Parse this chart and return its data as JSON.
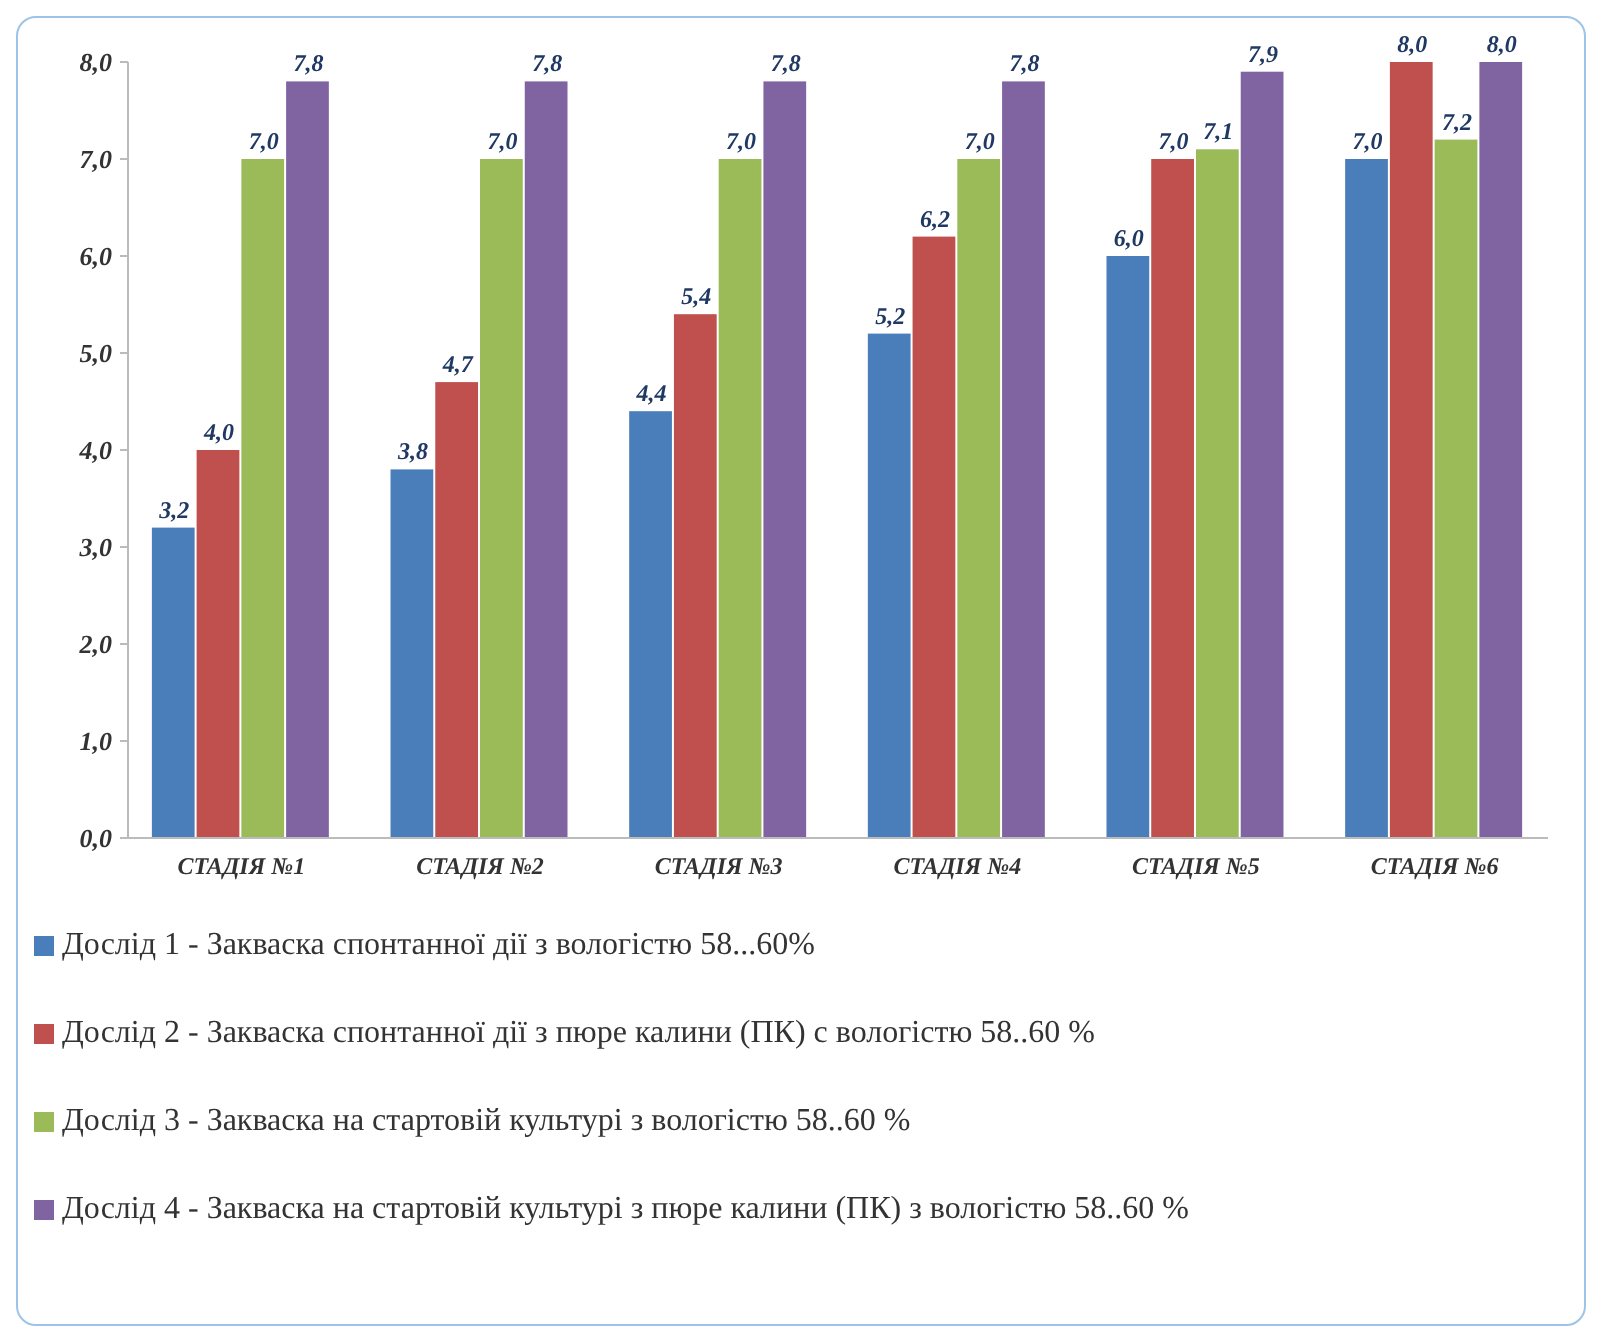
{
  "chart_data": {
    "type": "bar",
    "categories": [
      "СТАДІЯ №1",
      "СТАДІЯ №2",
      "СТАДІЯ №3",
      "СТАДІЯ №4",
      "СТАДІЯ №5",
      "СТАДІЯ №6"
    ],
    "series": [
      {
        "name": "Дослід 1 - Закваска спонтанної дії з вологістю 58...60%",
        "color": "#4a7ebb",
        "values": [
          3.2,
          3.8,
          4.4,
          5.2,
          6.0,
          7.0
        ],
        "value_labels": [
          "3,2",
          "3,8",
          "4,4",
          "5,2",
          "6,0",
          "7,0"
        ]
      },
      {
        "name": "Дослід 2 - Закваска спонтанної дії з пюре калини (ПК) с вологістю 58..60 %",
        "color": "#c0504d",
        "values": [
          4.0,
          4.7,
          5.4,
          6.2,
          7.0,
          8.0
        ],
        "value_labels": [
          "4,0",
          "4,7",
          "5,4",
          "6,2",
          "7,0",
          "8,0"
        ]
      },
      {
        "name": "Дослід 3 - Закваска на стартовій культурі з вологістю 58..60 %",
        "color": "#9bbb59",
        "values": [
          7.0,
          7.0,
          7.0,
          7.0,
          7.1,
          7.2
        ],
        "value_labels": [
          "7,0",
          "7,0",
          "7,0",
          "7,0",
          "7,1",
          "7,2"
        ]
      },
      {
        "name": "Дослід 4 - Закваска на стартовій культурі з пюре калини (ПК) з вологістю 58..60 %",
        "color": "#8064a2",
        "values": [
          7.8,
          7.8,
          7.8,
          7.8,
          7.9,
          8.0
        ],
        "value_labels": [
          "7,8",
          "7,8",
          "7,8",
          "7,8",
          "7,9",
          "8,0"
        ]
      }
    ],
    "ylim": [
      0,
      8
    ],
    "yticks": [
      {
        "value": 0,
        "label": "0,0"
      },
      {
        "value": 1,
        "label": "1,0"
      },
      {
        "value": 2,
        "label": "2,0"
      },
      {
        "value": 3,
        "label": "3,0"
      },
      {
        "value": 4,
        "label": "4,0"
      },
      {
        "value": 5,
        "label": "5,0"
      },
      {
        "value": 6,
        "label": "6,0"
      },
      {
        "value": 7,
        "label": "7,0"
      },
      {
        "value": 8,
        "label": "8,0"
      }
    ],
    "legend": "bottom"
  }
}
